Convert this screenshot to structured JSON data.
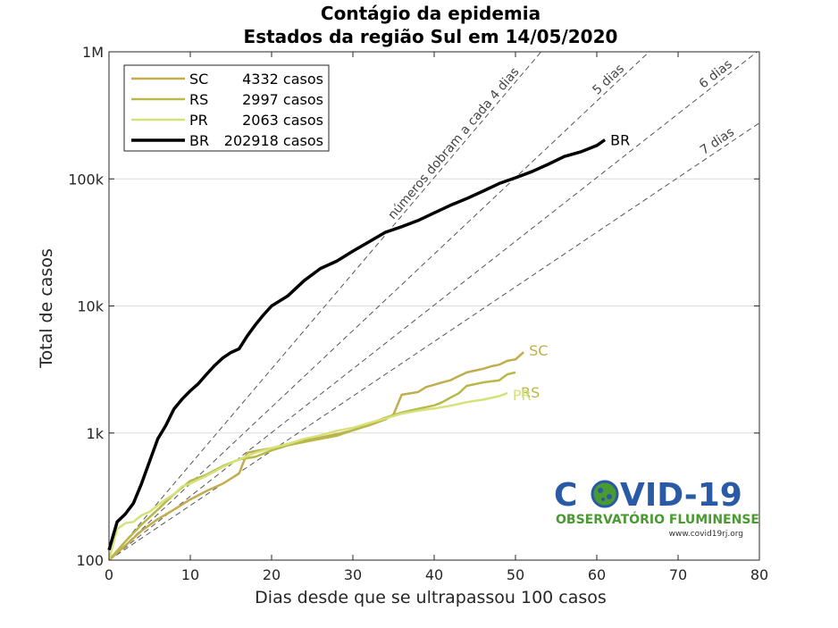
{
  "chart_data": {
    "type": "line",
    "title": "Contágio da epidemia",
    "subtitle": "Estados da região Sul em 14/05/2020",
    "xlabel": "Dias desde que se ultrapassou 100 casos",
    "ylabel": "Total de casos",
    "xlim": [
      0,
      80
    ],
    "ylim": [
      100,
      1000000
    ],
    "yscale": "log",
    "grid": "horizontal",
    "x_ticks": [
      "0",
      "10",
      "20",
      "30",
      "40",
      "50",
      "60",
      "70",
      "80"
    ],
    "y_ticks": [
      {
        "value": 100,
        "label": "100"
      },
      {
        "value": 1000,
        "label": "1k"
      },
      {
        "value": 10000,
        "label": "10k"
      },
      {
        "value": 100000,
        "label": "100k"
      },
      {
        "value": 1000000,
        "label": "1M"
      }
    ],
    "legend_position": "top-left",
    "series": [
      {
        "name": "SC",
        "legend_count": "4332 casos",
        "end_label": "SC",
        "color": "#c1ad4c",
        "width": 2.5,
        "x": [
          0,
          2,
          4,
          6,
          8,
          10,
          12,
          14,
          16,
          17,
          18,
          20,
          22,
          24,
          26,
          28,
          30,
          32,
          34,
          35,
          36,
          38,
          39,
          40,
          41,
          42,
          43,
          44,
          45,
          46,
          47,
          48,
          49,
          50,
          51
        ],
        "y": [
          100,
          130,
          170,
          210,
          250,
          300,
          350,
          400,
          480,
          700,
          720,
          760,
          820,
          870,
          920,
          980,
          1050,
          1150,
          1280,
          1400,
          2000,
          2100,
          2300,
          2400,
          2500,
          2600,
          2800,
          3000,
          3100,
          3200,
          3350,
          3450,
          3700,
          3800,
          4332
        ]
      },
      {
        "name": "RS",
        "legend_count": "2997 casos",
        "end_label": "RS",
        "color": "#b9b94a",
        "width": 2.5,
        "x": [
          0,
          2,
          4,
          6,
          8,
          10,
          12,
          14,
          16,
          18,
          20,
          22,
          24,
          26,
          28,
          30,
          32,
          34,
          36,
          38,
          40,
          41,
          42,
          43,
          44,
          46,
          48,
          49,
          50
        ],
        "y": [
          100,
          140,
          190,
          250,
          330,
          420,
          470,
          550,
          620,
          650,
          730,
          800,
          850,
          900,
          950,
          1050,
          1180,
          1320,
          1450,
          1550,
          1650,
          1750,
          1900,
          2050,
          2350,
          2500,
          2600,
          2900,
          2997
        ]
      },
      {
        "name": "PR",
        "legend_count": "2063 casos",
        "end_label": "PR",
        "color": "#d4e278",
        "width": 2.5,
        "x": [
          0,
          1,
          2,
          3,
          4,
          5,
          6,
          7,
          8,
          9,
          10,
          11,
          12,
          14,
          16,
          18,
          20,
          22,
          24,
          26,
          28,
          30,
          32,
          34,
          36,
          38,
          40,
          42,
          44,
          46,
          48,
          49
        ],
        "y": [
          100,
          175,
          195,
          200,
          225,
          240,
          270,
          300,
          330,
          380,
          400,
          430,
          460,
          540,
          620,
          700,
          760,
          820,
          900,
          960,
          1040,
          1100,
          1200,
          1300,
          1420,
          1500,
          1560,
          1640,
          1750,
          1830,
          1950,
          2063
        ]
      },
      {
        "name": "BR",
        "legend_count": "202918 casos",
        "end_label": "BR",
        "color": "#000000",
        "width": 3.5,
        "x": [
          0,
          1,
          2,
          3,
          4,
          5,
          6,
          7,
          8,
          9,
          10,
          11,
          12,
          13,
          14,
          15,
          16,
          17,
          18,
          19,
          20,
          22,
          24,
          26,
          28,
          30,
          32,
          34,
          36,
          38,
          40,
          42,
          44,
          46,
          48,
          50,
          52,
          54,
          56,
          58,
          60,
          61
        ],
        "y": [
          120,
          200,
          230,
          280,
          400,
          600,
          900,
          1150,
          1550,
          1850,
          2150,
          2450,
          2900,
          3400,
          3900,
          4300,
          4600,
          5800,
          7100,
          8500,
          10000,
          12000,
          15800,
          19700,
          22500,
          27000,
          32000,
          38000,
          42000,
          47000,
          54000,
          62000,
          70000,
          80000,
          92000,
          102000,
          114000,
          130000,
          150000,
          163000,
          183000,
          202918
        ]
      }
    ],
    "reference_lines": [
      {
        "label": "números dobram a cada 4 dias",
        "doubling_days": 4
      },
      {
        "label": "5 dias",
        "doubling_days": 5
      },
      {
        "label": "6 dias",
        "doubling_days": 6
      },
      {
        "label": "7 dias",
        "doubling_days": 7
      }
    ]
  },
  "logo": {
    "text_left": "C",
    "text_right": "VID-19",
    "subtitle": "OBSERVATÓRIO FLUMINENSE",
    "url": "www.covid19rj.org",
    "blue": "#2a5aa6",
    "green": "#4a9a32"
  }
}
